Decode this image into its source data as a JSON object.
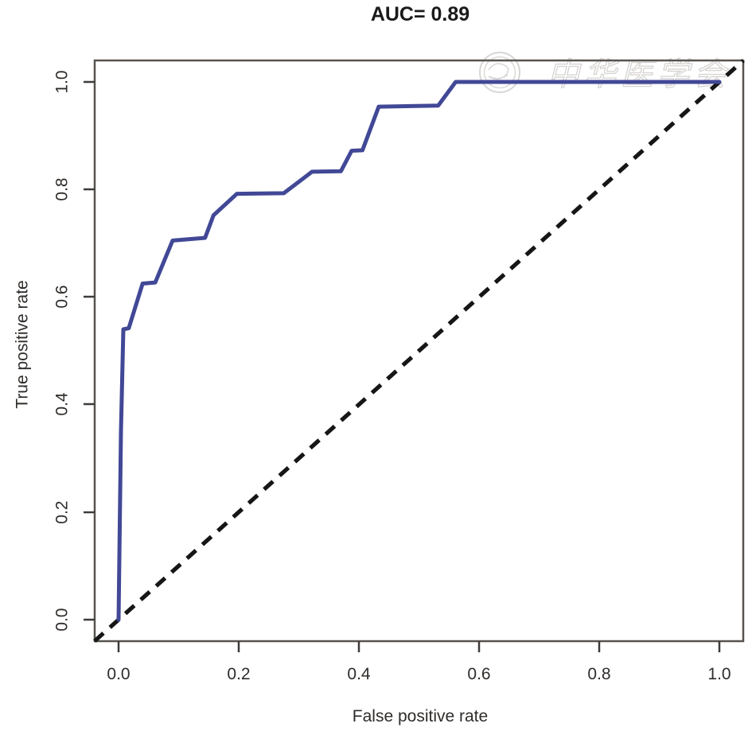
{
  "figure": {
    "title": "AUC= 0.89",
    "watermark": {
      "text": "中华医学会",
      "icon": "seal-logo"
    }
  },
  "chart_data": {
    "type": "line",
    "subtype": "roc-curve",
    "title": "AUC= 0.89",
    "xlabel": "False positive rate",
    "ylabel": "True positive rate",
    "x_tick_labels": [
      "0.0",
      "0.2",
      "0.4",
      "0.6",
      "0.8",
      "1.0"
    ],
    "y_tick_labels": [
      "0.0",
      "0.2",
      "0.4",
      "0.6",
      "0.8",
      "1.0"
    ],
    "xlim": [
      -0.04,
      1.04
    ],
    "ylim": [
      -0.04,
      1.04
    ],
    "grid": false,
    "legend": "none",
    "auc": 0.89,
    "series": [
      {
        "name": "ROC curve",
        "color": "#414896",
        "line_style": "solid",
        "line_width": 5,
        "points": [
          [
            0.0,
            0.0
          ],
          [
            0.004,
            0.35
          ],
          [
            0.008,
            0.54
          ],
          [
            0.017,
            0.542
          ],
          [
            0.04,
            0.625
          ],
          [
            0.061,
            0.627
          ],
          [
            0.09,
            0.705
          ],
          [
            0.144,
            0.71
          ],
          [
            0.158,
            0.752
          ],
          [
            0.197,
            0.792
          ],
          [
            0.275,
            0.793
          ],
          [
            0.322,
            0.833
          ],
          [
            0.37,
            0.834
          ],
          [
            0.388,
            0.872
          ],
          [
            0.406,
            0.873
          ],
          [
            0.433,
            0.954
          ],
          [
            0.532,
            0.956
          ],
          [
            0.561,
            1.0
          ],
          [
            1.0,
            1.0
          ]
        ]
      },
      {
        "name": "Chance diagonal",
        "color": "#161616",
        "line_style": "dashed",
        "line_width": 5,
        "points": [
          [
            -0.04,
            -0.04
          ],
          [
            1.04,
            1.04
          ]
        ]
      }
    ],
    "colors": {
      "curve": "#414896",
      "diagonal": "#161616",
      "box": "#57534f",
      "tick": "#3f3b39",
      "text": "#2f2c2a",
      "watermark": "#cfccca"
    }
  }
}
